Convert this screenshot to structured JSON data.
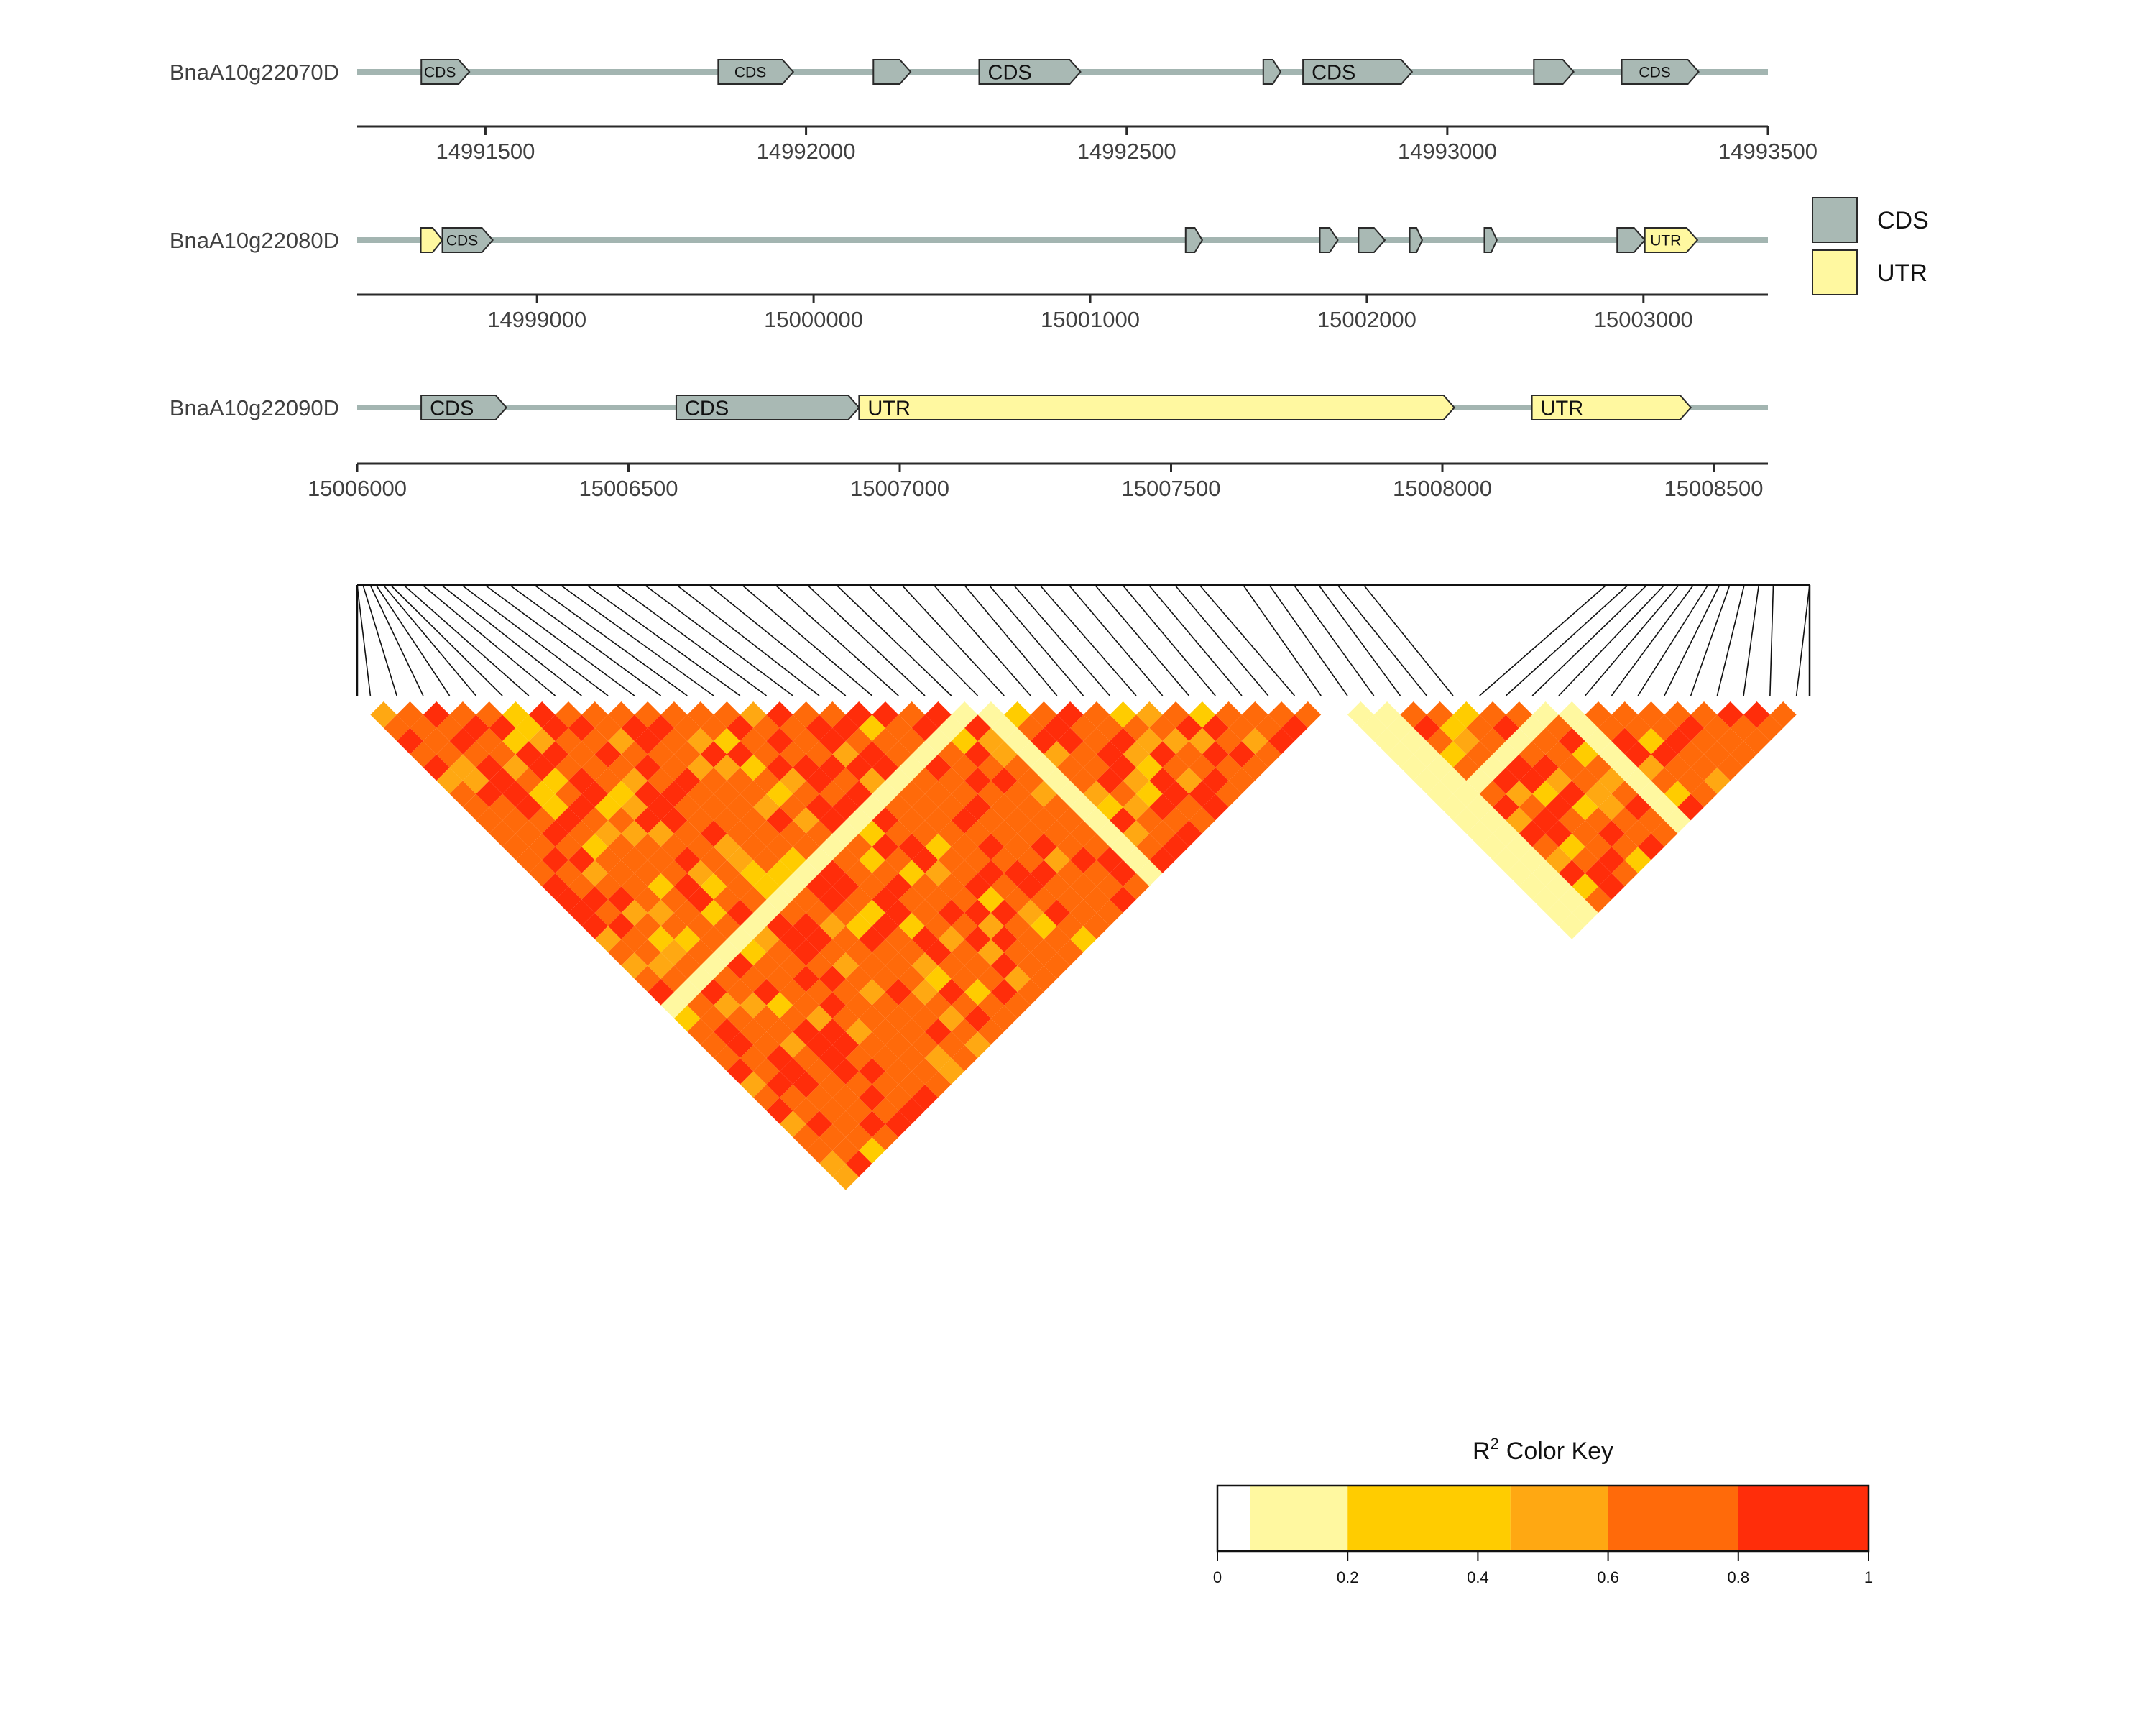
{
  "chart_data": [
    {
      "type": "gene_structure",
      "tracks": [
        {
          "gene": "BnaA10g22070D",
          "xlim": [
            14991300,
            14993500
          ],
          "ticks": [
            14991500,
            14992000,
            14992500,
            14993000,
            14993500
          ],
          "features": [
            {
              "type": "CDS",
              "start": 14991400,
              "end": 14991475,
              "label": "CDS"
            },
            {
              "type": "CDS",
              "start": 14991863,
              "end": 14991980,
              "label": "CDS"
            },
            {
              "type": "CDS",
              "start": 14992105,
              "end": 14992163,
              "label": ""
            },
            {
              "type": "CDS",
              "start": 14992270,
              "end": 14992428,
              "label": "CDS"
            },
            {
              "type": "CDS",
              "start": 14992713,
              "end": 14992740,
              "label": ""
            },
            {
              "type": "CDS",
              "start": 14992775,
              "end": 14992945,
              "label": "CDS"
            },
            {
              "type": "CDS",
              "start": 14993135,
              "end": 14993197,
              "label": ""
            },
            {
              "type": "CDS",
              "start": 14993272,
              "end": 14993392,
              "label": "CDS"
            }
          ]
        },
        {
          "gene": "BnaA10g22080D",
          "xlim": [
            14998350,
            15003450
          ],
          "ticks": [
            14999000,
            15000000,
            15001000,
            15002000,
            15003000
          ],
          "features": [
            {
              "type": "UTR",
              "start": 14998580,
              "end": 14998658,
              "label": ""
            },
            {
              "type": "CDS",
              "start": 14998658,
              "end": 14998840,
              "label": "CDS"
            },
            {
              "type": "CDS",
              "start": 15001345,
              "end": 15001405,
              "label": ""
            },
            {
              "type": "CDS",
              "start": 15001830,
              "end": 15001895,
              "label": ""
            },
            {
              "type": "CDS",
              "start": 15001970,
              "end": 15002065,
              "label": ""
            },
            {
              "type": "CDS",
              "start": 15002155,
              "end": 15002200,
              "label": ""
            },
            {
              "type": "CDS",
              "start": 15002425,
              "end": 15002470,
              "label": ""
            },
            {
              "type": "CDS",
              "start": 15002905,
              "end": 15003005,
              "label": ""
            },
            {
              "type": "UTR",
              "start": 15003005,
              "end": 15003195,
              "label": "UTR"
            }
          ]
        },
        {
          "gene": "BnaA10g22090D",
          "xlim": [
            15006000,
            15008600
          ],
          "ticks": [
            15006000,
            15006500,
            15007000,
            15007500,
            15008000,
            15008500
          ],
          "features": [
            {
              "type": "CDS",
              "start": 15006118,
              "end": 15006275,
              "label": "CDS"
            },
            {
              "type": "CDS",
              "start": 15006588,
              "end": 15006925,
              "label": "CDS"
            },
            {
              "type": "UTR",
              "start": 15006925,
              "end": 15008022,
              "label": "UTR"
            },
            {
              "type": "UTR",
              "start": 15008165,
              "end": 15008458,
              "label": "UTR"
            }
          ]
        }
      ],
      "legend": [
        {
          "label": "CDS",
          "color": "#a9b9b4"
        },
        {
          "label": "UTR",
          "color": "#fff8a0"
        }
      ]
    },
    {
      "type": "heatmap",
      "n_snps": 55,
      "snp_relative_positions": [
        0.0,
        0.004,
        0.009,
        0.013,
        0.018,
        0.023,
        0.032,
        0.045,
        0.058,
        0.072,
        0.088,
        0.105,
        0.122,
        0.14,
        0.158,
        0.178,
        0.198,
        0.22,
        0.242,
        0.265,
        0.288,
        0.31,
        0.33,
        0.352,
        0.375,
        0.397,
        0.418,
        0.435,
        0.452,
        0.47,
        0.49,
        0.508,
        0.527,
        0.545,
        0.563,
        0.58,
        0.61,
        0.628,
        0.645,
        0.662,
        0.675,
        0.693,
        0.86,
        0.875,
        0.888,
        0.9,
        0.91,
        0.92,
        0.93,
        0.938,
        0.945,
        0.955,
        0.965,
        0.975,
        1.0
      ],
      "low_ld_snps": [
        23,
        37,
        38,
        45
      ],
      "block_boundaries": [
        37
      ],
      "color_key": {
        "title": "Color Key",
        "title_prefix": "R",
        "title_superscript": "2",
        "breaks": [
          0,
          0.05,
          0.2,
          0.45,
          0.6,
          0.8,
          1
        ],
        "colors": [
          "#ffffff",
          "#fff8a0",
          "#ffcc00",
          "#ffa812",
          "#ff6a0a",
          "#ff2d0a"
        ],
        "tick_labels": [
          "0",
          "0.2",
          "0.4",
          "0.6",
          "0.8",
          "1"
        ],
        "tick_values": [
          0,
          0.2,
          0.4,
          0.6,
          0.8,
          1
        ]
      }
    }
  ]
}
